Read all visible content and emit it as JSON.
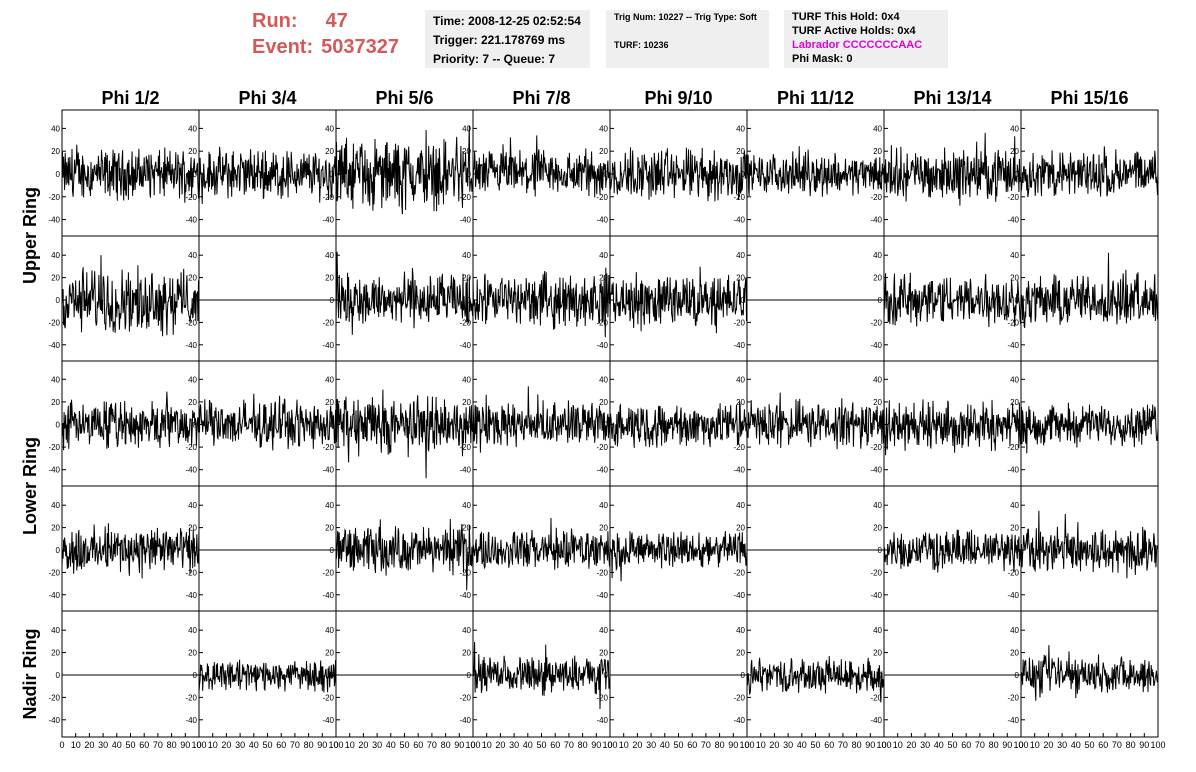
{
  "run": {
    "run_label": "Run:",
    "run_value": "47",
    "event_label": "Event:",
    "event_value": "5037327"
  },
  "time_box": {
    "time": "Time: 2008-12-25 02:52:54",
    "trigger": "Trigger: 221.178769 ms",
    "priority": "Priority: 7 -- Queue: 7"
  },
  "trig_box": {
    "trig": "Trig Num: 10227 -- Trig Type: Soft",
    "turf": "TURF: 10236"
  },
  "turf_box": {
    "this_hold": "TURF This Hold: 0x4",
    "active_holds": "TURF Active Holds: 0x4",
    "labrador": "Labrador CCCCCCCAAC",
    "phi_mask": "Phi Mask: 0"
  },
  "colors": {
    "header_text": "#d45a5a",
    "labrador": "#e000e0",
    "box_bg": "#efefef",
    "trace": "#000000"
  },
  "chart_data": {
    "type": "line",
    "columns": [
      "Phi 1/2",
      "Phi 3/4",
      "Phi 5/6",
      "Phi 7/8",
      "Phi 9/10",
      "Phi 11/12",
      "Phi 13/14",
      "Phi 15/16"
    ],
    "rows": [
      "Upper Ring",
      "Lower Ring",
      "Nadir Ring"
    ],
    "subrows_per_ring": [
      2,
      2,
      1
    ],
    "xlim": [
      0,
      100
    ],
    "ylim": [
      -50,
      50
    ],
    "yticks": [
      40,
      20,
      0,
      -20,
      -40
    ],
    "xtick_labels": [
      "0",
      "10",
      "20",
      "30",
      "40",
      "50",
      "60",
      "70",
      "80",
      "90",
      "100"
    ],
    "panels": [
      [
        {
          "flat": false,
          "amp": 16
        },
        {
          "flat": false,
          "amp": 16
        },
        {
          "flat": false,
          "amp": 22
        },
        {
          "flat": false,
          "amp": 15
        },
        {
          "flat": false,
          "amp": 17
        },
        {
          "flat": false,
          "amp": 13
        },
        {
          "flat": false,
          "amp": 16
        },
        {
          "flat": false,
          "amp": 15
        }
      ],
      [
        {
          "flat": false,
          "amp": 21
        },
        {
          "flat": true,
          "amp": 0
        },
        {
          "flat": false,
          "amp": 17
        },
        {
          "flat": false,
          "amp": 17
        },
        {
          "flat": false,
          "amp": 17
        },
        {
          "flat": true,
          "amp": 0
        },
        {
          "flat": false,
          "amp": 17
        },
        {
          "flat": false,
          "amp": 17
        }
      ],
      [
        {
          "flat": false,
          "amp": 15
        },
        {
          "flat": false,
          "amp": 15
        },
        {
          "flat": false,
          "amp": 19
        },
        {
          "flat": false,
          "amp": 14
        },
        {
          "flat": false,
          "amp": 14
        },
        {
          "flat": false,
          "amp": 15
        },
        {
          "flat": false,
          "amp": 16
        },
        {
          "flat": false,
          "amp": 13
        }
      ],
      [
        {
          "flat": false,
          "amp": 15
        },
        {
          "flat": true,
          "amp": 0
        },
        {
          "flat": false,
          "amp": 15
        },
        {
          "flat": false,
          "amp": 13
        },
        {
          "flat": false,
          "amp": 12
        },
        {
          "flat": true,
          "amp": 0
        },
        {
          "flat": false,
          "amp": 13
        },
        {
          "flat": false,
          "amp": 15
        }
      ],
      [
        {
          "flat": true,
          "amp": 0
        },
        {
          "flat": false,
          "amp": 10
        },
        {
          "flat": true,
          "amp": 0
        },
        {
          "flat": false,
          "amp": 12
        },
        {
          "flat": true,
          "amp": 0
        },
        {
          "flat": false,
          "amp": 11
        },
        {
          "flat": true,
          "amp": 0
        },
        {
          "flat": false,
          "amp": 12
        }
      ]
    ]
  }
}
